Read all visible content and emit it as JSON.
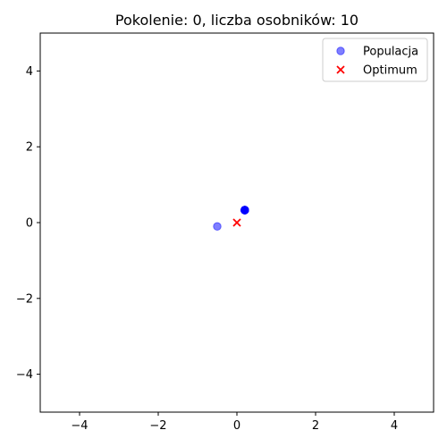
{
  "chart_data": {
    "type": "scatter",
    "title": "Pokolenie: 0, liczba osobników: 10",
    "xlabel": "",
    "ylabel": "",
    "xlim": [
      -5,
      5
    ],
    "ylim": [
      -5,
      5
    ],
    "xticks": [
      -4,
      -2,
      0,
      2,
      4
    ],
    "yticks": [
      -4,
      -2,
      0,
      2,
      4
    ],
    "xtick_labels": [
      "−4",
      "−2",
      "0",
      "2",
      "4"
    ],
    "ytick_labels": [
      "−4",
      "−2",
      "0",
      "2",
      "4"
    ],
    "grid": false,
    "legend_placement": "top-right",
    "series": [
      {
        "name": "Populacja",
        "marker": "circle",
        "color": "#0000ff",
        "alpha": 0.5,
        "points": [
          [
            -0.5,
            -0.1
          ],
          [
            0.2,
            0.33
          ],
          [
            0.2,
            0.33
          ],
          [
            0.2,
            0.33
          ],
          [
            0.2,
            0.33
          ],
          [
            0.2,
            0.33
          ],
          [
            0.2,
            0.33
          ],
          [
            0.2,
            0.33
          ],
          [
            0.2,
            0.33
          ],
          [
            0.2,
            0.33
          ]
        ]
      },
      {
        "name": "Optimum",
        "marker": "x",
        "color": "#ff0000",
        "points": [
          [
            0,
            0
          ]
        ]
      }
    ]
  }
}
